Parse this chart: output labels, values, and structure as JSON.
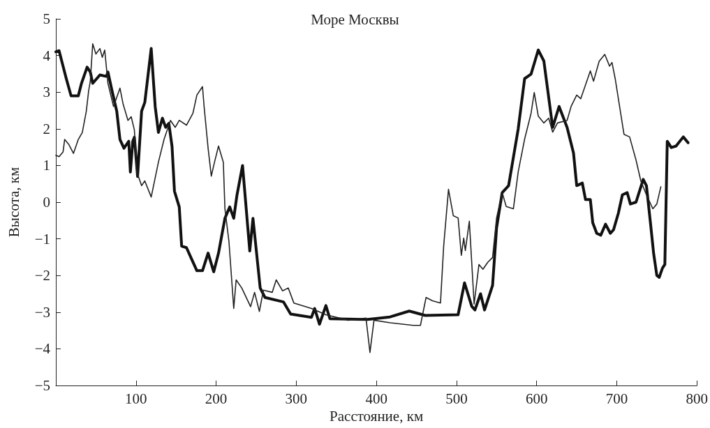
{
  "chart_data": {
    "type": "line",
    "title": "Море Москвы",
    "xlabel": "Расстояние, км",
    "ylabel": "Высота, км",
    "xlim": [
      0,
      800
    ],
    "xticks": [
      100,
      200,
      300,
      400,
      500,
      600,
      700,
      800
    ],
    "ylim": [
      -5,
      5
    ],
    "yticks": [
      {
        "value": -5,
        "label": "−5"
      },
      {
        "value": -4,
        "label": "−4"
      },
      {
        "value": -3,
        "label": "−3"
      },
      {
        "value": -2,
        "label": "−2"
      },
      {
        "value": -1,
        "label": "−1"
      },
      0,
      1,
      2,
      3,
      4,
      5
    ],
    "marker": "none",
    "line_style": "solid",
    "series": [
      {
        "color": "#111111",
        "x": [
          0,
          4,
          13,
          19,
          28,
          32,
          39,
          43,
          46,
          55,
          63,
          65,
          70,
          76,
          80,
          85,
          91,
          93,
          96,
          98,
          102,
          107,
          111,
          119,
          124,
          128,
          133,
          137,
          141,
          145,
          148,
          154,
          157,
          163,
          170,
          176,
          183,
          190,
          197,
          203,
          211,
          217,
          222,
          226,
          233,
          242,
          246,
          255,
          261,
          284,
          293,
          319,
          323,
          329,
          337,
          342,
          389,
          417,
          441,
          461,
          502,
          510,
          519,
          523,
          530,
          535,
          545,
          550,
          557,
          565,
          577,
          585,
          593,
          602,
          609,
          620,
          628,
          638,
          646,
          650,
          657,
          661,
          667,
          670,
          675,
          680,
          686,
          692,
          696,
          702,
          707,
          713,
          717,
          724,
          733,
          737,
          742,
          746,
          750,
          753,
          757,
          760,
          763,
          768,
          774,
          783,
          789
        ],
        "values": [
          4.1,
          4.13,
          3.37,
          2.9,
          2.9,
          3.24,
          3.68,
          3.55,
          3.24,
          3.47,
          3.43,
          3.55,
          3.05,
          2.48,
          1.71,
          1.47,
          1.66,
          0.82,
          1.66,
          1.77,
          0.7,
          2.48,
          2.72,
          4.19,
          2.6,
          1.9,
          2.29,
          2.04,
          2.15,
          1.52,
          0.3,
          -0.13,
          -1.2,
          -1.24,
          -1.58,
          -1.87,
          -1.87,
          -1.39,
          -1.9,
          -1.39,
          -0.44,
          -0.13,
          -0.44,
          0.19,
          1.0,
          -1.33,
          -0.44,
          -2.34,
          -2.6,
          -2.72,
          -3.05,
          -3.14,
          -2.9,
          -3.33,
          -2.82,
          -3.18,
          -3.2,
          -3.13,
          -2.97,
          -3.09,
          -3.07,
          -2.2,
          -2.84,
          -2.94,
          -2.5,
          -2.94,
          -2.27,
          -0.7,
          0.26,
          0.45,
          2.0,
          3.37,
          3.49,
          4.15,
          3.85,
          2.04,
          2.61,
          2.04,
          1.34,
          0.45,
          0.52,
          0.07,
          0.07,
          -0.56,
          -0.85,
          -0.9,
          -0.6,
          -0.85,
          -0.75,
          -0.3,
          0.2,
          0.26,
          -0.05,
          0.0,
          0.62,
          0.45,
          -0.56,
          -1.4,
          -2.0,
          -2.05,
          -1.8,
          -1.7,
          1.66,
          1.49,
          1.53,
          1.78,
          1.62
        ]
      },
      {
        "color": "#222222",
        "x": [
          0,
          4,
          9,
          11,
          16,
          22,
          28,
          33,
          38,
          41,
          43,
          46,
          50,
          55,
          58,
          61,
          65,
          72,
          80,
          84,
          90,
          94,
          98,
          101,
          107,
          111,
          119,
          128,
          135,
          143,
          149,
          154,
          163,
          171,
          176,
          183,
          185,
          190,
          194,
          198,
          203,
          209,
          211,
          216,
          222,
          225,
          232,
          243,
          248,
          254,
          259,
          270,
          275,
          283,
          290,
          297,
          319,
          337,
          365,
          387,
          392,
          397,
          417,
          446,
          455,
          462,
          470,
          480,
          484,
          490,
          496,
          502,
          506,
          509,
          511,
          516,
          522,
          528,
          533,
          539,
          545,
          550,
          557,
          562,
          571,
          577,
          585,
          593,
          597,
          602,
          609,
          615,
          620,
          626,
          638,
          643,
          650,
          655,
          667,
          671,
          678,
          685,
          691,
          694,
          698,
          709,
          716,
          724,
          730,
          737,
          745,
          750,
          755
        ],
        "values": [
          1.28,
          1.24,
          1.37,
          1.71,
          1.58,
          1.33,
          1.71,
          1.9,
          2.48,
          3.05,
          3.3,
          4.32,
          4.04,
          4.19,
          3.95,
          4.15,
          3.24,
          2.61,
          3.11,
          2.67,
          2.23,
          2.33,
          1.97,
          0.83,
          0.45,
          0.58,
          0.14,
          1.09,
          1.71,
          2.23,
          2.04,
          2.23,
          2.1,
          2.42,
          2.92,
          3.15,
          2.61,
          1.47,
          0.71,
          1.09,
          1.53,
          1.09,
          -0.18,
          -1.07,
          -2.9,
          -2.12,
          -2.34,
          -2.85,
          -2.46,
          -2.98,
          -2.4,
          -2.46,
          -2.12,
          -2.42,
          -2.34,
          -2.75,
          -2.9,
          -3.07,
          -3.22,
          -3.16,
          -4.1,
          -3.22,
          -3.29,
          -3.36,
          -3.36,
          -2.6,
          -2.69,
          -2.75,
          -1.19,
          0.35,
          -0.37,
          -0.43,
          -1.45,
          -0.98,
          -1.32,
          -0.52,
          -2.78,
          -1.7,
          -1.83,
          -1.64,
          -1.51,
          -0.43,
          0.26,
          -0.12,
          -0.18,
          0.83,
          1.72,
          2.42,
          2.99,
          2.35,
          2.16,
          2.29,
          1.91,
          2.16,
          2.23,
          2.61,
          2.92,
          2.82,
          3.58,
          3.3,
          3.84,
          4.03,
          3.71,
          3.81,
          3.37,
          1.85,
          1.78,
          1.15,
          0.58,
          0.2,
          -0.18,
          -0.05,
          0.42
        ]
      }
    ]
  }
}
